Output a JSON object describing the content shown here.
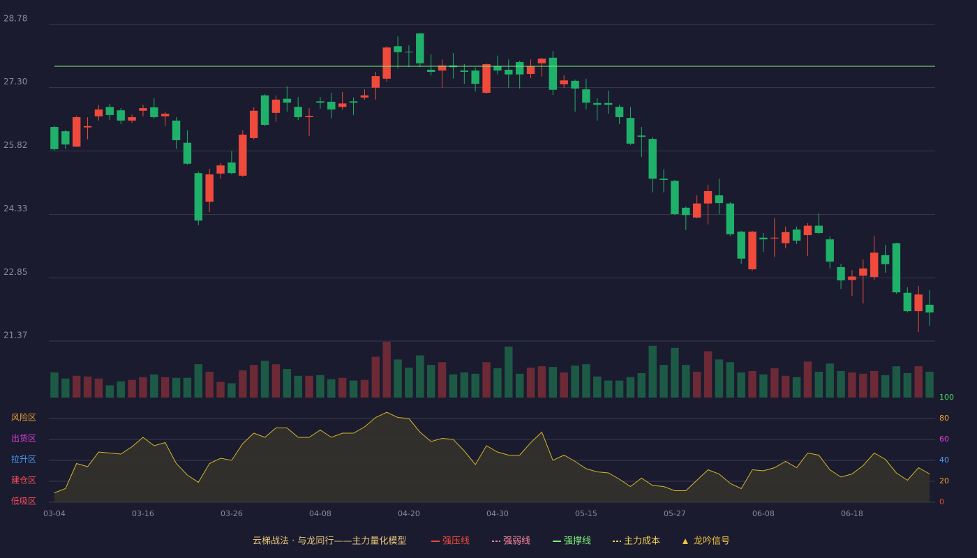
{
  "chart_data": [
    {
      "type": "candlestick",
      "open": [
        26.38,
        26.28,
        25.92,
        26.37,
        26.63,
        26.85,
        26.77,
        26.53,
        26.76,
        26.84,
        26.63,
        26.53,
        26.01,
        25.3,
        24.63,
        25.29,
        25.55,
        25.24,
        26.12,
        27.12,
        26.71,
        27.04,
        26.85,
        26.61,
        26.98,
        26.97,
        26.85,
        26.98,
        27.07,
        27.3,
        27.51,
        28.27,
        28.14,
        28.57,
        27.72,
        27.7,
        27.82,
        27.7,
        27.7,
        27.18,
        27.8,
        27.72,
        27.9,
        27.62,
        27.87,
        28.0,
        27.38,
        27.46,
        27.26,
        26.94,
        26.94,
        26.85,
        26.59,
        26.18,
        26.1,
        25.17,
        25.12,
        24.49,
        24.26,
        24.59,
        24.78,
        24.59,
        23.93,
        23.05,
        23.79,
        23.77,
        23.66,
        23.98,
        23.85,
        24.07,
        23.75,
        23.1,
        22.8,
        22.9,
        22.87,
        23.38,
        23.66,
        22.5,
        22.07,
        22.22
      ],
      "high": [
        26.41,
        26.31,
        26.64,
        26.61,
        26.89,
        26.92,
        26.82,
        26.67,
        26.9,
        27.05,
        26.74,
        26.61,
        26.3,
        25.34,
        25.4,
        25.53,
        25.82,
        26.3,
        26.84,
        27.15,
        27.12,
        27.33,
        27.08,
        26.82,
        27.08,
        27.18,
        27.2,
        27.07,
        27.26,
        27.67,
        28.27,
        28.5,
        28.29,
        28.58,
        28.08,
        27.96,
        28.11,
        27.85,
        27.77,
        27.87,
        28.05,
        27.96,
        27.93,
        27.96,
        28.0,
        28.16,
        27.59,
        27.49,
        27.51,
        27.05,
        27.23,
        26.9,
        26.85,
        26.38,
        26.15,
        25.39,
        25.14,
        24.52,
        24.78,
        25.03,
        25.17,
        24.62,
        23.95,
        23.95,
        23.9,
        24.24,
        24.05,
        24.05,
        24.13,
        24.36,
        23.82,
        23.18,
        23.03,
        23.28,
        23.83,
        23.62,
        23.67,
        22.63,
        22.66,
        22.56
      ],
      "low": [
        25.83,
        25.87,
        25.91,
        26.09,
        26.53,
        26.54,
        26.45,
        26.48,
        26.63,
        26.58,
        26.4,
        25.87,
        25.5,
        24.08,
        24.39,
        25.17,
        25.27,
        25.21,
        26.09,
        26.4,
        26.5,
        26.74,
        26.54,
        26.17,
        26.81,
        26.58,
        26.79,
        26.66,
        27.02,
        27.02,
        27.44,
        27.75,
        27.78,
        27.78,
        27.59,
        27.3,
        27.51,
        27.39,
        27.21,
        27.16,
        27.61,
        27.3,
        27.28,
        27.52,
        27.56,
        27.13,
        27.3,
        26.74,
        26.79,
        26.53,
        26.69,
        26.45,
        25.96,
        25.68,
        24.85,
        24.85,
        24.32,
        23.97,
        24.24,
        24.1,
        24.34,
        23.83,
        23.18,
        23.02,
        23.46,
        23.34,
        23.54,
        23.64,
        23.36,
        23.87,
        23.07,
        22.59,
        22.43,
        22.25,
        22.8,
        22.97,
        22.48,
        22.04,
        21.58,
        21.73
      ],
      "close": [
        25.86,
        25.97,
        26.61,
        26.4,
        26.79,
        26.66,
        26.53,
        26.61,
        26.82,
        26.61,
        26.69,
        26.07,
        25.52,
        24.19,
        25.27,
        25.48,
        25.3,
        26.2,
        26.76,
        26.43,
        27.02,
        26.95,
        26.61,
        26.64,
        26.95,
        26.79,
        26.93,
        26.95,
        27.12,
        27.57,
        28.24,
        28.13,
        28.13,
        27.87,
        27.67,
        27.82,
        27.78,
        27.67,
        27.39,
        27.85,
        27.7,
        27.61,
        27.61,
        27.8,
        27.98,
        27.25,
        27.47,
        27.28,
        26.95,
        26.9,
        26.9,
        26.61,
        25.99,
        26.15,
        25.17,
        25.14,
        24.34,
        24.32,
        24.59,
        24.88,
        24.6,
        23.87,
        23.3,
        23.93,
        23.75,
        23.79,
        23.92,
        23.72,
        24.07,
        23.9,
        23.23,
        22.79,
        22.88,
        23.07,
        23.44,
        23.17,
        22.51,
        22.07,
        22.46,
        22.04
      ],
      "up_color": "#ef4a3c",
      "down_color": "#1fb06a",
      "ylim": [
        21.37,
        28.78
      ],
      "yticks": [
        21.37,
        22.85,
        24.33,
        25.82,
        {
          "value": 27.3,
          "label": "27.30"
        },
        28.78
      ],
      "grid": true,
      "support_line": {
        "value": 27.8,
        "color": "#7cf27c"
      }
    },
    {
      "type": "volume",
      "values": [
        37,
        28,
        32,
        31,
        28,
        18,
        24,
        26,
        30,
        34,
        30,
        29,
        29,
        49,
        38,
        23,
        21,
        40,
        48,
        54,
        49,
        42,
        32,
        32,
        33,
        27,
        29,
        25,
        26,
        60,
        82,
        56,
        44,
        62,
        48,
        52,
        34,
        37,
        35,
        52,
        43,
        75,
        35,
        44,
        46,
        45,
        37,
        47,
        49,
        31,
        25,
        25,
        30,
        36,
        76,
        48,
        73,
        48,
        38,
        68,
        56,
        52,
        37,
        39,
        34,
        43,
        32,
        30,
        53,
        38,
        50,
        39,
        37,
        35,
        39,
        33,
        46,
        36,
        46,
        38
      ],
      "up_color": "#6b2a35",
      "down_color": "#1d5a45"
    },
    {
      "type": "area",
      "categories": [
        "03-04",
        null,
        null,
        null,
        null,
        null,
        null,
        null,
        "03-16",
        null,
        null,
        null,
        null,
        null,
        null,
        null,
        "03-26",
        null,
        null,
        null,
        null,
        null,
        null,
        null,
        "04-08",
        null,
        null,
        null,
        null,
        null,
        null,
        null,
        "04-20",
        null,
        null,
        null,
        null,
        null,
        null,
        null,
        "04-30",
        null,
        null,
        null,
        null,
        null,
        null,
        null,
        "05-15",
        null,
        null,
        null,
        null,
        null,
        null,
        null,
        "05-27",
        null,
        null,
        null,
        null,
        null,
        null,
        null,
        "06-08",
        null,
        null,
        null,
        null,
        null,
        null,
        null,
        "06-18",
        null,
        null,
        null,
        null,
        null,
        null,
        null
      ],
      "values": [
        9,
        13,
        37,
        34,
        48,
        47,
        46,
        53,
        62,
        54,
        57,
        37,
        26,
        19,
        37,
        42,
        40,
        56,
        66,
        62,
        71,
        71,
        62,
        62,
        69,
        62,
        66,
        66,
        72,
        81,
        86,
        81,
        80,
        67,
        58,
        61,
        60,
        49,
        36,
        54,
        48,
        45,
        45,
        57,
        67,
        40,
        45,
        39,
        32,
        29,
        28,
        22,
        15,
        23,
        16,
        15,
        11,
        11,
        21,
        31,
        27,
        18,
        13,
        31,
        30,
        33,
        39,
        33,
        47,
        45,
        31,
        24,
        27,
        35,
        47,
        41,
        28,
        21,
        33,
        27
      ],
      "color": "#d8b62a",
      "fill": "#35322a",
      "ylim": [
        0,
        100
      ],
      "yticks": [
        0,
        20,
        40,
        60,
        80,
        100
      ],
      "ytick_colors": [
        "#ef4a3c",
        "#f0a030",
        "#4a9eff",
        "#e040e0",
        "#f0a030",
        "#4cd964"
      ],
      "zones": [
        {
          "label": "风险区",
          "value": 80,
          "color": "#f0a030"
        },
        {
          "label": "出货区",
          "value": 60,
          "color": "#e040e0"
        },
        {
          "label": "拉升区",
          "value": 40,
          "color": "#4a9eff"
        },
        {
          "label": "建仓区",
          "value": 20,
          "color": "#ff4d5e"
        },
        {
          "label": "低吸区",
          "value": 0,
          "color": "#ff4d5e"
        }
      ],
      "grid": true
    }
  ],
  "legend": {
    "title": "云梯战法 · 与龙同行——主力量化模型",
    "title_color": "#e8c47a",
    "items": [
      {
        "name": "强压线",
        "color": "#ef4a3c",
        "style": "solid"
      },
      {
        "name": "强弱线",
        "color": "#ff8aa0",
        "style": "dashed"
      },
      {
        "name": "强撑线",
        "color": "#7cf27c",
        "style": "solid"
      },
      {
        "name": "主力成本",
        "color": "#f0d050",
        "style": "dashed"
      },
      {
        "name": "龙吟信号",
        "color": "#f0c040",
        "style": "triangle"
      }
    ]
  }
}
